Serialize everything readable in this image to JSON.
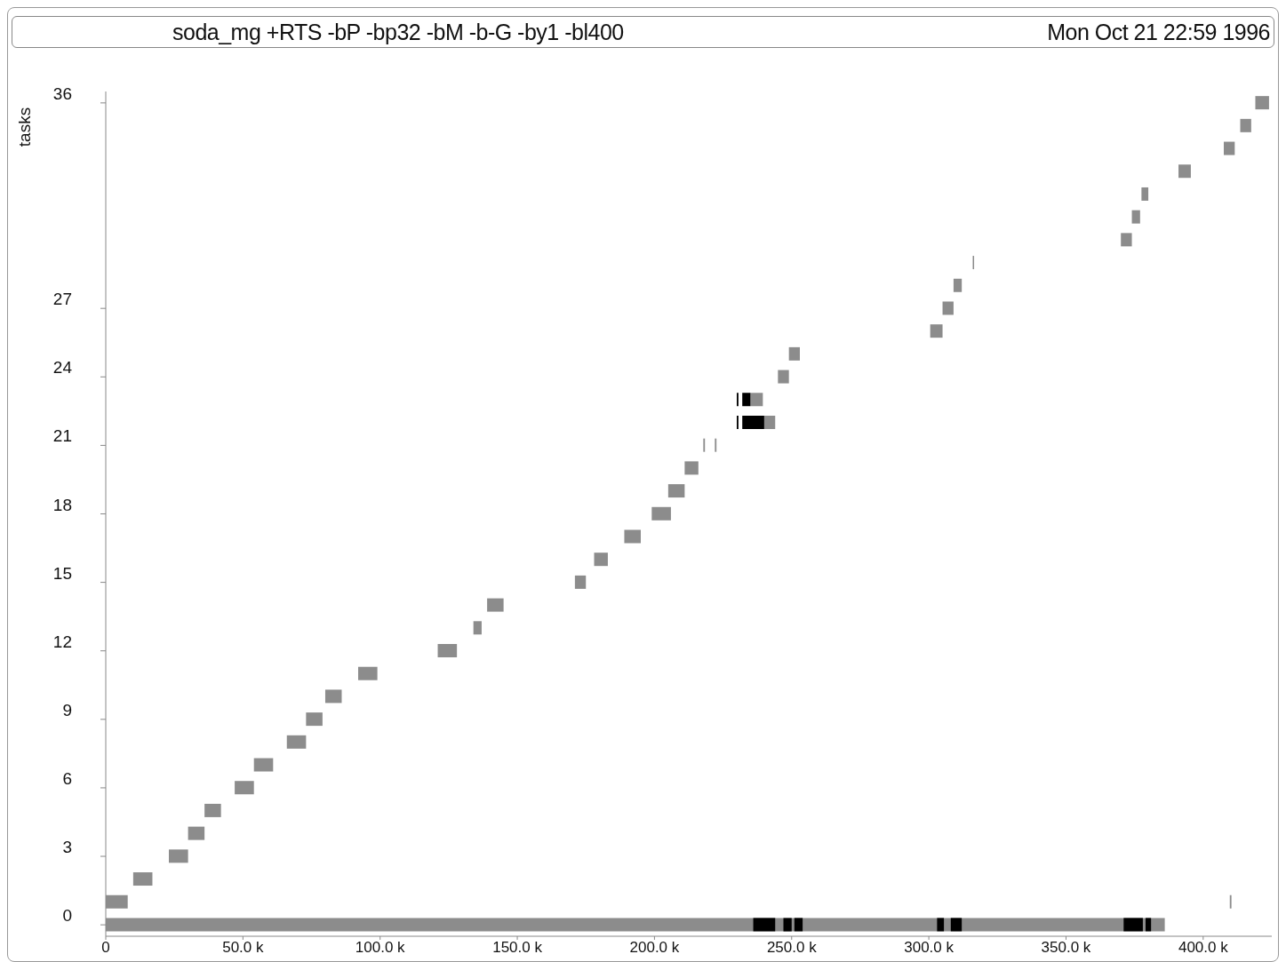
{
  "chart_data": {
    "type": "bar",
    "orientation": "horizontal",
    "title": "soda_mg +RTS -bP -bp32 -bM -b-G -by1 -bl400",
    "subtitle": "Mon Oct 21 22:59 1996",
    "ylabel": "tasks",
    "categories": [
      "36",
      null,
      null,
      null,
      null,
      null,
      null,
      null,
      null,
      "27",
      null,
      null,
      "24",
      null,
      null,
      "21",
      null,
      null,
      "18",
      null,
      null,
      "15",
      null,
      null,
      "12",
      null,
      null,
      "9",
      null,
      null,
      "6",
      null,
      null,
      "3",
      null,
      null,
      "0"
    ],
    "xlim": [
      0,
      425000
    ],
    "xticks": [
      0,
      {
        "value": 50000,
        "label": "50.0 k"
      },
      {
        "value": 100000,
        "label": "100.0 k"
      },
      {
        "value": 150000,
        "label": "150.0 k"
      },
      {
        "value": 200000,
        "label": "200.0 k"
      },
      {
        "value": 250000,
        "label": "250.0 k"
      },
      {
        "value": 300000,
        "label": "300.0 k"
      },
      {
        "value": 350000,
        "label": "350.0 k"
      },
      {
        "value": 400000,
        "label": "400.0 k"
      }
    ],
    "series": [
      {
        "color": "#8c8c8c",
        "base": [
          419000,
          413500,
          407500,
          391000,
          377500,
          374000,
          370000,
          316000,
          309000,
          305000,
          300500,
          249000,
          245000,
          235000,
          240000,
          217800,
          211000,
          205000,
          199000,
          189000,
          178000,
          171000,
          139000,
          134000,
          121000,
          92000,
          80000,
          73000,
          66000,
          54000,
          47000,
          36000,
          30000,
          23000,
          10000,
          0,
          0
        ],
        "values": [
          5000,
          4000,
          4000,
          4500,
          2500,
          3000,
          4000,
          500,
          3000,
          4000,
          4500,
          4000,
          4000,
          4500,
          4000,
          600,
          5000,
          6000,
          7000,
          6000,
          5000,
          4000,
          6000,
          3000,
          7000,
          7000,
          6000,
          6000,
          7000,
          7000,
          7000,
          6000,
          6000,
          7000,
          7000,
          8000,
          386000
        ]
      },
      {
        "color": "#8c8c8c",
        "base": [
          null,
          null,
          null,
          null,
          null,
          null,
          null,
          null,
          null,
          null,
          null,
          null,
          null,
          null,
          null,
          222000,
          null,
          null,
          null,
          null,
          null,
          null,
          null,
          null,
          null,
          null,
          null,
          null,
          null,
          null,
          null,
          null,
          null,
          null,
          null,
          409700,
          null
        ],
        "values": [
          null,
          null,
          null,
          null,
          null,
          null,
          null,
          null,
          null,
          null,
          null,
          null,
          null,
          null,
          null,
          600,
          null,
          null,
          null,
          null,
          null,
          null,
          null,
          null,
          null,
          null,
          null,
          null,
          null,
          null,
          null,
          null,
          null,
          null,
          null,
          600,
          null
        ]
      },
      {
        "color": "#000000",
        "base": [
          null,
          null,
          null,
          null,
          null,
          null,
          null,
          null,
          null,
          null,
          null,
          null,
          null,
          232000,
          232000,
          null,
          null,
          null,
          null,
          null,
          null,
          null,
          null,
          null,
          null,
          null,
          null,
          null,
          null,
          null,
          null,
          null,
          null,
          null,
          null,
          null,
          236000
        ],
        "values": [
          null,
          null,
          null,
          null,
          null,
          null,
          null,
          null,
          null,
          null,
          null,
          null,
          null,
          3000,
          8000,
          null,
          null,
          null,
          null,
          null,
          null,
          null,
          null,
          null,
          null,
          null,
          null,
          null,
          null,
          null,
          null,
          null,
          null,
          null,
          null,
          null,
          8000
        ]
      },
      {
        "color": "#000000",
        "base": [
          null,
          null,
          null,
          null,
          null,
          null,
          null,
          null,
          null,
          null,
          null,
          null,
          null,
          230000,
          230000,
          null,
          null,
          null,
          null,
          null,
          null,
          null,
          null,
          null,
          null,
          null,
          null,
          null,
          null,
          null,
          null,
          null,
          null,
          null,
          null,
          null,
          247000
        ],
        "values": [
          null,
          null,
          null,
          null,
          null,
          null,
          null,
          null,
          null,
          null,
          null,
          null,
          null,
          600,
          600,
          null,
          null,
          null,
          null,
          null,
          null,
          null,
          null,
          null,
          null,
          null,
          null,
          null,
          null,
          null,
          null,
          null,
          null,
          null,
          null,
          null,
          3000
        ]
      },
      {
        "color": "#000000",
        "base": [
          null,
          null,
          null,
          null,
          null,
          null,
          null,
          null,
          null,
          null,
          null,
          null,
          null,
          null,
          null,
          null,
          null,
          null,
          null,
          null,
          null,
          null,
          null,
          null,
          null,
          null,
          null,
          null,
          null,
          null,
          null,
          null,
          null,
          null,
          null,
          null,
          251000
        ],
        "values": [
          null,
          null,
          null,
          null,
          null,
          null,
          null,
          null,
          null,
          null,
          null,
          null,
          null,
          null,
          null,
          null,
          null,
          null,
          null,
          null,
          null,
          null,
          null,
          null,
          null,
          null,
          null,
          null,
          null,
          null,
          null,
          null,
          null,
          null,
          null,
          null,
          3000
        ]
      },
      {
        "color": "#000000",
        "base": [
          null,
          null,
          null,
          null,
          null,
          null,
          null,
          null,
          null,
          null,
          null,
          null,
          null,
          null,
          null,
          null,
          null,
          null,
          null,
          null,
          null,
          null,
          null,
          null,
          null,
          null,
          null,
          null,
          null,
          null,
          null,
          null,
          null,
          null,
          null,
          null,
          303000
        ],
        "values": [
          null,
          null,
          null,
          null,
          null,
          null,
          null,
          null,
          null,
          null,
          null,
          null,
          null,
          null,
          null,
          null,
          null,
          null,
          null,
          null,
          null,
          null,
          null,
          null,
          null,
          null,
          null,
          null,
          null,
          null,
          null,
          null,
          null,
          null,
          null,
          null,
          2500
        ]
      },
      {
        "color": "#000000",
        "base": [
          null,
          null,
          null,
          null,
          null,
          null,
          null,
          null,
          null,
          null,
          null,
          null,
          null,
          null,
          null,
          null,
          null,
          null,
          null,
          null,
          null,
          null,
          null,
          null,
          null,
          null,
          null,
          null,
          null,
          null,
          null,
          null,
          null,
          null,
          null,
          null,
          308000
        ],
        "values": [
          null,
          null,
          null,
          null,
          null,
          null,
          null,
          null,
          null,
          null,
          null,
          null,
          null,
          null,
          null,
          null,
          null,
          null,
          null,
          null,
          null,
          null,
          null,
          null,
          null,
          null,
          null,
          null,
          null,
          null,
          null,
          null,
          null,
          null,
          null,
          null,
          4000
        ]
      },
      {
        "color": "#000000",
        "base": [
          null,
          null,
          null,
          null,
          null,
          null,
          null,
          null,
          null,
          null,
          null,
          null,
          null,
          null,
          null,
          null,
          null,
          null,
          null,
          null,
          null,
          null,
          null,
          null,
          null,
          null,
          null,
          null,
          null,
          null,
          null,
          null,
          null,
          null,
          null,
          null,
          371000
        ],
        "values": [
          null,
          null,
          null,
          null,
          null,
          null,
          null,
          null,
          null,
          null,
          null,
          null,
          null,
          null,
          null,
          null,
          null,
          null,
          null,
          null,
          null,
          null,
          null,
          null,
          null,
          null,
          null,
          null,
          null,
          null,
          null,
          null,
          null,
          null,
          null,
          null,
          7000
        ]
      },
      {
        "color": "#000000",
        "base": [
          null,
          null,
          null,
          null,
          null,
          null,
          null,
          null,
          null,
          null,
          null,
          null,
          null,
          null,
          null,
          null,
          null,
          null,
          null,
          null,
          null,
          null,
          null,
          null,
          null,
          null,
          null,
          null,
          null,
          null,
          null,
          null,
          null,
          null,
          null,
          null,
          379000
        ],
        "values": [
          null,
          null,
          null,
          null,
          null,
          null,
          null,
          null,
          null,
          null,
          null,
          null,
          null,
          null,
          null,
          null,
          null,
          null,
          null,
          null,
          null,
          null,
          null,
          null,
          null,
          null,
          null,
          null,
          null,
          null,
          null,
          null,
          null,
          null,
          null,
          null,
          2000
        ]
      }
    ]
  }
}
